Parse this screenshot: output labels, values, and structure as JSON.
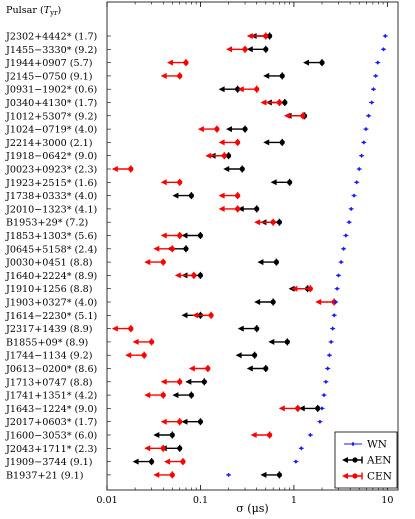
{
  "chart_data": {
    "type": "scatter",
    "title": "",
    "header_label": "Pulsar (T_yr)",
    "xlabel": "σ (μs)",
    "xscale": "log",
    "xlim": [
      0.01,
      13
    ],
    "xticks": [
      "0.01",
      "0.1",
      "1",
      "10"
    ],
    "legend_position": "bottom-right",
    "grid": false,
    "colors": {
      "WN": "#1a1aff",
      "AEN": "#000000",
      "CEN": "#ff0000"
    },
    "series": [
      {
        "name": "WN",
        "style": "points"
      },
      {
        "name": "AEN",
        "style": "upper-limit"
      },
      {
        "name": "CEN",
        "style": "upper-limit"
      }
    ],
    "pulsars": [
      {
        "label": "J2302+4442* (1.7)",
        "WN": 9.5,
        "AEN": 0.55,
        "CEN": 0.5
      },
      {
        "label": "J1455−3330* (9.2)",
        "WN": 9.1,
        "AEN": 0.5,
        "CEN": 0.3
      },
      {
        "label": "J1944+0907 (5.7)",
        "WN": 7.9,
        "AEN": 2.0,
        "CEN": 0.07
      },
      {
        "label": "J2145−0750 (9.1)",
        "WN": 7.5,
        "AEN": 0.75,
        "CEN": 0.06
      },
      {
        "label": "J0931−1902* (0.6)",
        "WN": 7.1,
        "AEN": 0.25,
        "CEN": 0.4
      },
      {
        "label": "J0340+4130* (1.7)",
        "WN": 6.8,
        "AEN": 0.8,
        "CEN": 0.7
      },
      {
        "label": "J1012+5307* (9.2)",
        "WN": 6.3,
        "AEN": 1.3,
        "CEN": 1.25
      },
      {
        "label": "J1024−0719* (4.0)",
        "WN": 5.9,
        "AEN": 0.3,
        "CEN": 0.15
      },
      {
        "label": "J2214+3000 (2.1)",
        "WN": 5.6,
        "AEN": 0.75,
        "CEN": 0.25
      },
      {
        "label": "J1918−0642* (9.0)",
        "WN": 5.3,
        "AEN": 0.2,
        "CEN": 0.18
      },
      {
        "label": "J0023+0923* (2.3)",
        "WN": 5.0,
        "AEN": 0.28,
        "CEN": 0.018
      },
      {
        "label": "J1923+2515* (1.6)",
        "WN": 4.7,
        "AEN": 0.9,
        "CEN": 0.06
      },
      {
        "label": "J1738+0333* (4.0)",
        "WN": 4.4,
        "AEN": 0.08,
        "CEN": 0.25
      },
      {
        "label": "J2010−1323* (4.1)",
        "WN": 4.1,
        "AEN": 0.4,
        "CEN": 0.25
      },
      {
        "label": "B1953+29* (7.2)",
        "WN": 3.9,
        "AEN": 0.7,
        "CEN": 0.6
      },
      {
        "label": "J1853+1303* (5.6)",
        "WN": 3.6,
        "AEN": 0.1,
        "CEN": 0.06
      },
      {
        "label": "J0645+5158* (2.4)",
        "WN": 3.4,
        "AEN": 0.07,
        "CEN": 0.05
      },
      {
        "label": "J0030+0451 (8.8)",
        "WN": 3.2,
        "AEN": 0.65,
        "CEN": 0.04
      },
      {
        "label": "J1640+2224* (8.9)",
        "WN": 3.0,
        "AEN": 0.1,
        "CEN": 0.085
      },
      {
        "label": "J1910+1256 (8.8)",
        "WN": 2.9,
        "AEN": 1.4,
        "CEN": 1.5
      },
      {
        "label": "J1903+0327* (4.0)",
        "WN": 2.8,
        "AEN": 0.6,
        "CEN": 2.7
      },
      {
        "label": "J1614−2230* (5.1)",
        "WN": 2.7,
        "AEN": 0.1,
        "CEN": 0.13
      },
      {
        "label": "J2317+1439 (8.9)",
        "WN": 2.6,
        "AEN": 0.4,
        "CEN": 0.018
      },
      {
        "label": "B1855+09* (8.9)",
        "WN": 2.5,
        "AEN": 0.85,
        "CEN": 0.03
      },
      {
        "label": "J1744−1134 (9.2)",
        "WN": 2.4,
        "AEN": 0.38,
        "CEN": 0.025
      },
      {
        "label": "J0613−0200* (8.6)",
        "WN": 2.3,
        "AEN": 0.5,
        "CEN": 0.12
      },
      {
        "label": "J1713+0747 (8.8)",
        "WN": 2.2,
        "AEN": 0.11,
        "CEN": 0.06
      },
      {
        "label": "J1741+1351* (4.2)",
        "WN": 2.1,
        "AEN": 0.08,
        "CEN": 0.04
      },
      {
        "label": "J1643−1224* (9.0)",
        "WN": 2.0,
        "AEN": 1.8,
        "CEN": 1.1
      },
      {
        "label": "J2017+0603* (1.7)",
        "WN": 1.9,
        "AEN": 0.1,
        "CEN": 0.06
      },
      {
        "label": "J1600−3053* (6.0)",
        "WN": 1.5,
        "AEN": 0.05,
        "CEN": 0.55
      },
      {
        "label": "J2043+1711* (2.3)",
        "WN": 1.2,
        "AEN": 0.06,
        "CEN": 0.04
      },
      {
        "label": "J1909−3744 (9.1)",
        "WN": 1.05,
        "AEN": 0.03,
        "CEN": 0.065
      },
      {
        "label": "B1937+21 (9.1)",
        "WN": 0.2,
        "AEN": 0.7,
        "CEN": 0.05
      }
    ]
  }
}
